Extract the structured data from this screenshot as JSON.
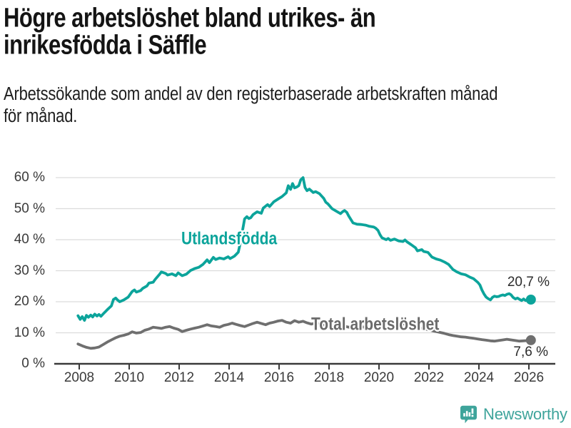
{
  "header": {
    "title_line1": "Högre arbetslöshet bland utrikes- än",
    "title_line2": "inrikesfödda i Säffle",
    "subtitle_line1": "Arbetssökande som andel av den registerbaserade arbetskraften månad",
    "subtitle_line2": "för månad."
  },
  "footer": {
    "brand": "Newsworthy",
    "brand_color": "#3ea49b",
    "logo_icon": "newsworthy-speech-bubble-bar-chart-icon"
  },
  "chart_data": {
    "type": "line",
    "title": "Högre arbetslöshet bland utrikes- än inrikesfödda i Säffle",
    "subtitle": "Arbetssökande som andel av den registerbaserade arbetskraften månad för månad.",
    "grid": true,
    "legend": "inline-labels",
    "x_axis": {
      "ticks": [
        2008,
        2010,
        2012,
        2014,
        2016,
        2018,
        2020,
        2022,
        2024,
        2026
      ],
      "range": [
        2007.9,
        2027.1
      ]
    },
    "y_axis": {
      "ticks": [
        0,
        10,
        20,
        30,
        40,
        50,
        60
      ],
      "suffix": " %",
      "range": [
        0,
        62
      ]
    },
    "style": {
      "grid_color": "#dcdcdc",
      "axis_color": "#3a3a3a"
    },
    "series": [
      {
        "name": "Utlandsfödda",
        "color": "#0ca49b",
        "end_label": "20,7 %",
        "end_value": 20.7,
        "points": [
          [
            2007.95,
            15.5
          ],
          [
            2008.04,
            14.3
          ],
          [
            2008.12,
            15.2
          ],
          [
            2008.21,
            14.0
          ],
          [
            2008.29,
            15.6
          ],
          [
            2008.37,
            15.0
          ],
          [
            2008.46,
            15.7
          ],
          [
            2008.54,
            15.1
          ],
          [
            2008.62,
            16.0
          ],
          [
            2008.71,
            15.4
          ],
          [
            2008.79,
            15.9
          ],
          [
            2008.87,
            15.3
          ],
          [
            2008.96,
            16.1
          ],
          [
            2009.12,
            17.4
          ],
          [
            2009.29,
            18.7
          ],
          [
            2009.37,
            20.7
          ],
          [
            2009.46,
            21.2
          ],
          [
            2009.54,
            20.5
          ],
          [
            2009.62,
            20.0
          ],
          [
            2009.79,
            20.6
          ],
          [
            2009.96,
            21.5
          ],
          [
            2010.12,
            23.3
          ],
          [
            2010.21,
            23.8
          ],
          [
            2010.29,
            23.1
          ],
          [
            2010.46,
            23.6
          ],
          [
            2010.54,
            24.3
          ],
          [
            2010.71,
            25.1
          ],
          [
            2010.79,
            26.0
          ],
          [
            2010.96,
            26.3
          ],
          [
            2011.04,
            27.2
          ],
          [
            2011.21,
            28.8
          ],
          [
            2011.29,
            29.6
          ],
          [
            2011.46,
            29.1
          ],
          [
            2011.54,
            28.6
          ],
          [
            2011.71,
            29.0
          ],
          [
            2011.87,
            28.4
          ],
          [
            2011.96,
            29.3
          ],
          [
            2012.12,
            28.4
          ],
          [
            2012.29,
            28.9
          ],
          [
            2012.46,
            30.1
          ],
          [
            2012.62,
            30.7
          ],
          [
            2012.79,
            31.1
          ],
          [
            2012.96,
            32.1
          ],
          [
            2013.12,
            33.5
          ],
          [
            2013.21,
            32.6
          ],
          [
            2013.37,
            34.3
          ],
          [
            2013.46,
            33.6
          ],
          [
            2013.62,
            34.1
          ],
          [
            2013.79,
            33.8
          ],
          [
            2013.96,
            34.5
          ],
          [
            2014.04,
            33.9
          ],
          [
            2014.21,
            34.7
          ],
          [
            2014.29,
            35.3
          ],
          [
            2014.37,
            36.0
          ],
          [
            2014.46,
            39.4
          ],
          [
            2014.54,
            43.1
          ],
          [
            2014.62,
            46.7
          ],
          [
            2014.71,
            47.4
          ],
          [
            2014.79,
            46.8
          ],
          [
            2014.87,
            47.1
          ],
          [
            2014.96,
            48.1
          ],
          [
            2015.12,
            49.0
          ],
          [
            2015.29,
            48.5
          ],
          [
            2015.37,
            50.2
          ],
          [
            2015.54,
            51.3
          ],
          [
            2015.62,
            50.7
          ],
          [
            2015.79,
            52.2
          ],
          [
            2015.96,
            53.1
          ],
          [
            2016.12,
            53.9
          ],
          [
            2016.29,
            55.1
          ],
          [
            2016.37,
            57.4
          ],
          [
            2016.46,
            56.2
          ],
          [
            2016.54,
            58.1
          ],
          [
            2016.62,
            56.7
          ],
          [
            2016.71,
            57.0
          ],
          [
            2016.79,
            57.4
          ],
          [
            2016.87,
            59.3
          ],
          [
            2016.96,
            60.0
          ],
          [
            2017.04,
            56.8
          ],
          [
            2017.12,
            55.8
          ],
          [
            2017.21,
            56.3
          ],
          [
            2017.37,
            55.2
          ],
          [
            2017.46,
            55.5
          ],
          [
            2017.62,
            54.8
          ],
          [
            2017.79,
            53.3
          ],
          [
            2017.87,
            52.1
          ],
          [
            2017.96,
            51.5
          ],
          [
            2018.12,
            50.0
          ],
          [
            2018.29,
            49.2
          ],
          [
            2018.46,
            48.4
          ],
          [
            2018.54,
            49.0
          ],
          [
            2018.62,
            49.4
          ],
          [
            2018.71,
            48.8
          ],
          [
            2018.79,
            47.6
          ],
          [
            2018.96,
            45.4
          ],
          [
            2019.12,
            45.0
          ],
          [
            2019.29,
            44.9
          ],
          [
            2019.46,
            44.7
          ],
          [
            2019.62,
            44.3
          ],
          [
            2019.79,
            44.1
          ],
          [
            2019.87,
            43.7
          ],
          [
            2019.96,
            43.0
          ],
          [
            2020.04,
            41.6
          ],
          [
            2020.12,
            40.6
          ],
          [
            2020.29,
            40.0
          ],
          [
            2020.37,
            40.4
          ],
          [
            2020.46,
            39.8
          ],
          [
            2020.62,
            40.2
          ],
          [
            2020.79,
            39.6
          ],
          [
            2020.96,
            39.4
          ],
          [
            2021.04,
            39.9
          ],
          [
            2021.12,
            39.3
          ],
          [
            2021.29,
            38.4
          ],
          [
            2021.46,
            37.4
          ],
          [
            2021.54,
            36.4
          ],
          [
            2021.71,
            36.8
          ],
          [
            2021.79,
            36.2
          ],
          [
            2021.96,
            35.9
          ],
          [
            2022.12,
            34.4
          ],
          [
            2022.29,
            33.8
          ],
          [
            2022.46,
            33.4
          ],
          [
            2022.62,
            32.8
          ],
          [
            2022.79,
            32.0
          ],
          [
            2022.96,
            30.4
          ],
          [
            2023.12,
            29.6
          ],
          [
            2023.29,
            29.0
          ],
          [
            2023.46,
            28.7
          ],
          [
            2023.62,
            28.0
          ],
          [
            2023.79,
            27.4
          ],
          [
            2023.96,
            26.2
          ],
          [
            2024.04,
            25.4
          ],
          [
            2024.12,
            23.8
          ],
          [
            2024.21,
            22.4
          ],
          [
            2024.29,
            21.5
          ],
          [
            2024.37,
            21.0
          ],
          [
            2024.46,
            20.6
          ],
          [
            2024.54,
            21.4
          ],
          [
            2024.62,
            21.8
          ],
          [
            2024.71,
            21.6
          ],
          [
            2024.79,
            21.7
          ],
          [
            2024.87,
            22.0
          ],
          [
            2024.96,
            22.2
          ],
          [
            2025.04,
            22.0
          ],
          [
            2025.12,
            22.4
          ],
          [
            2025.21,
            22.6
          ],
          [
            2025.29,
            22.2
          ],
          [
            2025.37,
            21.4
          ],
          [
            2025.46,
            20.9
          ],
          [
            2025.54,
            21.2
          ],
          [
            2025.62,
            20.8
          ],
          [
            2025.71,
            20.4
          ],
          [
            2025.79,
            20.9
          ],
          [
            2025.87,
            20.4
          ],
          [
            2025.96,
            20.5
          ],
          [
            2026.08,
            20.7
          ]
        ]
      },
      {
        "name": "Total arbetslöshet",
        "color": "#6f6f6f",
        "end_label": "7,6 %",
        "end_value": 7.6,
        "points": [
          [
            2007.95,
            6.4
          ],
          [
            2008.12,
            5.8
          ],
          [
            2008.29,
            5.3
          ],
          [
            2008.46,
            5.0
          ],
          [
            2008.62,
            5.1
          ],
          [
            2008.79,
            5.4
          ],
          [
            2008.96,
            6.2
          ],
          [
            2009.12,
            7.0
          ],
          [
            2009.29,
            7.7
          ],
          [
            2009.46,
            8.4
          ],
          [
            2009.62,
            8.9
          ],
          [
            2009.79,
            9.2
          ],
          [
            2009.96,
            9.6
          ],
          [
            2010.12,
            10.3
          ],
          [
            2010.29,
            9.9
          ],
          [
            2010.46,
            10.1
          ],
          [
            2010.62,
            10.8
          ],
          [
            2010.79,
            11.2
          ],
          [
            2010.96,
            11.8
          ],
          [
            2011.12,
            11.6
          ],
          [
            2011.29,
            11.4
          ],
          [
            2011.46,
            11.8
          ],
          [
            2011.62,
            12.0
          ],
          [
            2011.79,
            11.5
          ],
          [
            2011.96,
            11.1
          ],
          [
            2012.12,
            10.4
          ],
          [
            2012.29,
            10.8
          ],
          [
            2012.46,
            11.2
          ],
          [
            2012.62,
            11.5
          ],
          [
            2012.79,
            11.8
          ],
          [
            2012.96,
            12.2
          ],
          [
            2013.12,
            12.6
          ],
          [
            2013.29,
            12.2
          ],
          [
            2013.46,
            12.0
          ],
          [
            2013.62,
            11.8
          ],
          [
            2013.79,
            12.4
          ],
          [
            2013.96,
            12.7
          ],
          [
            2014.12,
            13.1
          ],
          [
            2014.29,
            12.7
          ],
          [
            2014.46,
            12.3
          ],
          [
            2014.62,
            12.0
          ],
          [
            2014.79,
            12.5
          ],
          [
            2014.96,
            13.0
          ],
          [
            2015.12,
            13.4
          ],
          [
            2015.29,
            13.0
          ],
          [
            2015.46,
            12.6
          ],
          [
            2015.62,
            13.1
          ],
          [
            2015.79,
            13.4
          ],
          [
            2015.96,
            13.8
          ],
          [
            2016.12,
            14.0
          ],
          [
            2016.29,
            13.4
          ],
          [
            2016.46,
            13.1
          ],
          [
            2016.62,
            13.9
          ],
          [
            2016.79,
            13.4
          ],
          [
            2016.96,
            13.7
          ],
          [
            2017.12,
            13.2
          ],
          [
            2017.29,
            12.8
          ],
          [
            2017.46,
            13.1
          ],
          [
            2017.62,
            12.7
          ],
          [
            2017.79,
            12.4
          ],
          [
            2017.96,
            12.8
          ],
          [
            2018.12,
            12.3
          ],
          [
            2018.29,
            12.0
          ],
          [
            2018.46,
            12.4
          ],
          [
            2018.62,
            12.1
          ],
          [
            2018.79,
            11.8
          ],
          [
            2018.96,
            12.1
          ],
          [
            2019.12,
            11.8
          ],
          [
            2019.29,
            12.0
          ],
          [
            2019.46,
            11.7
          ],
          [
            2019.62,
            11.9
          ],
          [
            2019.79,
            12.1
          ],
          [
            2019.96,
            12.4
          ],
          [
            2020.12,
            13.1
          ],
          [
            2020.29,
            13.6
          ],
          [
            2020.46,
            13.3
          ],
          [
            2020.62,
            13.0
          ],
          [
            2020.79,
            12.7
          ],
          [
            2020.96,
            12.9
          ],
          [
            2021.12,
            12.5
          ],
          [
            2021.29,
            12.2
          ],
          [
            2021.46,
            11.9
          ],
          [
            2021.62,
            11.6
          ],
          [
            2021.79,
            11.3
          ],
          [
            2021.96,
            11.0
          ],
          [
            2022.12,
            10.7
          ],
          [
            2022.29,
            10.4
          ],
          [
            2022.46,
            10.1
          ],
          [
            2022.62,
            9.8
          ],
          [
            2022.79,
            9.4
          ],
          [
            2022.96,
            9.1
          ],
          [
            2023.12,
            8.9
          ],
          [
            2023.29,
            8.7
          ],
          [
            2023.46,
            8.6
          ],
          [
            2023.62,
            8.4
          ],
          [
            2023.79,
            8.2
          ],
          [
            2023.96,
            8.0
          ],
          [
            2024.12,
            7.8
          ],
          [
            2024.29,
            7.6
          ],
          [
            2024.46,
            7.4
          ],
          [
            2024.62,
            7.3
          ],
          [
            2024.79,
            7.5
          ],
          [
            2024.96,
            7.7
          ],
          [
            2025.12,
            7.9
          ],
          [
            2025.29,
            7.7
          ],
          [
            2025.46,
            7.5
          ],
          [
            2025.62,
            7.3
          ],
          [
            2025.79,
            7.4
          ],
          [
            2025.96,
            7.5
          ],
          [
            2026.08,
            7.6
          ]
        ]
      }
    ]
  }
}
